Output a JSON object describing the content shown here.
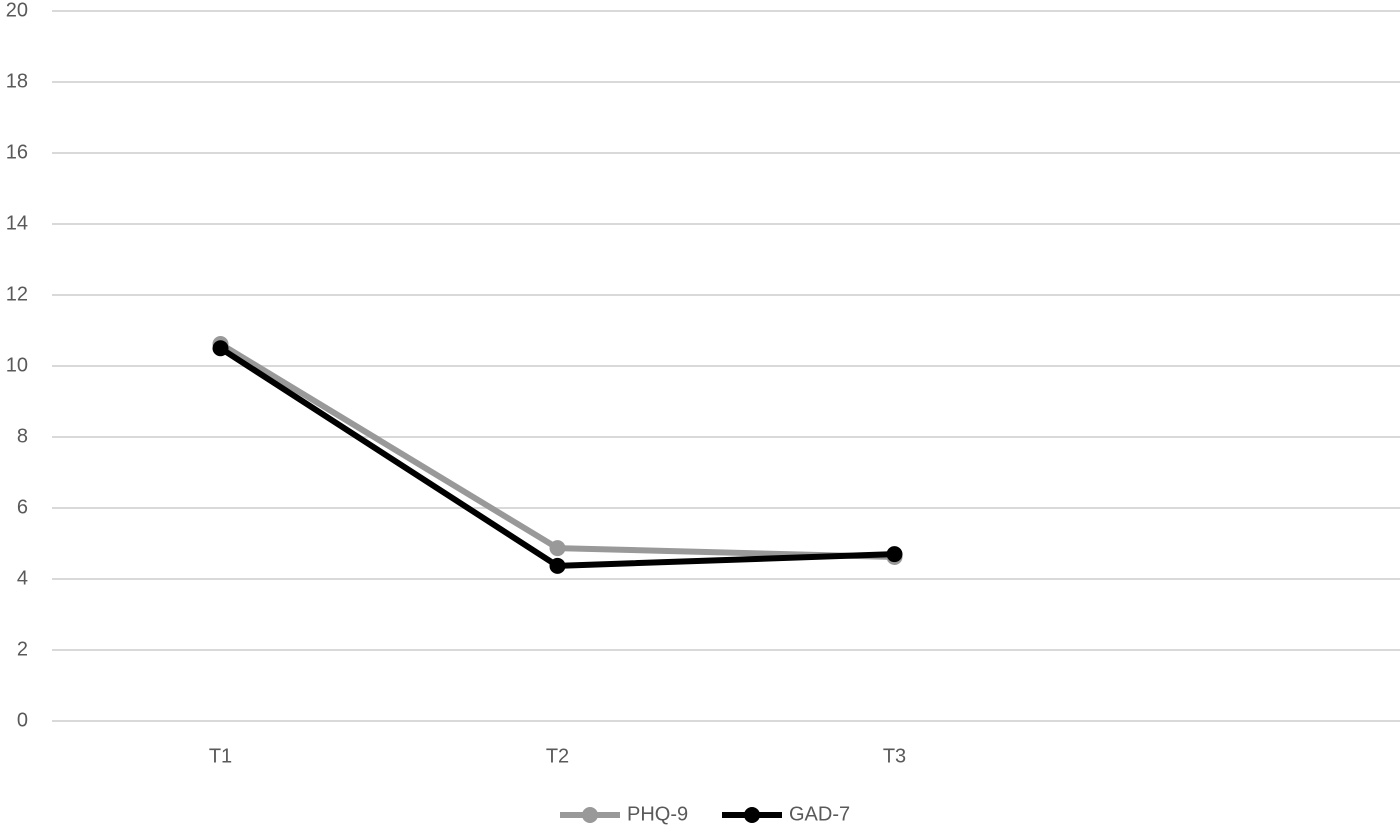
{
  "chart_data": {
    "type": "line",
    "categories": [
      "T1",
      "T2",
      "T3",
      null
    ],
    "series": [
      {
        "name": "PHQ-9",
        "color": "#999999",
        "values": [
          10.62,
          4.87,
          4.62,
          null
        ]
      },
      {
        "name": "GAD-7",
        "color": "#000000",
        "values": [
          10.5,
          4.37,
          4.7,
          null
        ]
      }
    ],
    "ylim": [
      0,
      20
    ],
    "yticks": [
      0,
      2,
      4,
      6,
      8,
      10,
      12,
      14,
      16,
      18,
      20
    ],
    "grid": true,
    "legend": "bottom"
  }
}
